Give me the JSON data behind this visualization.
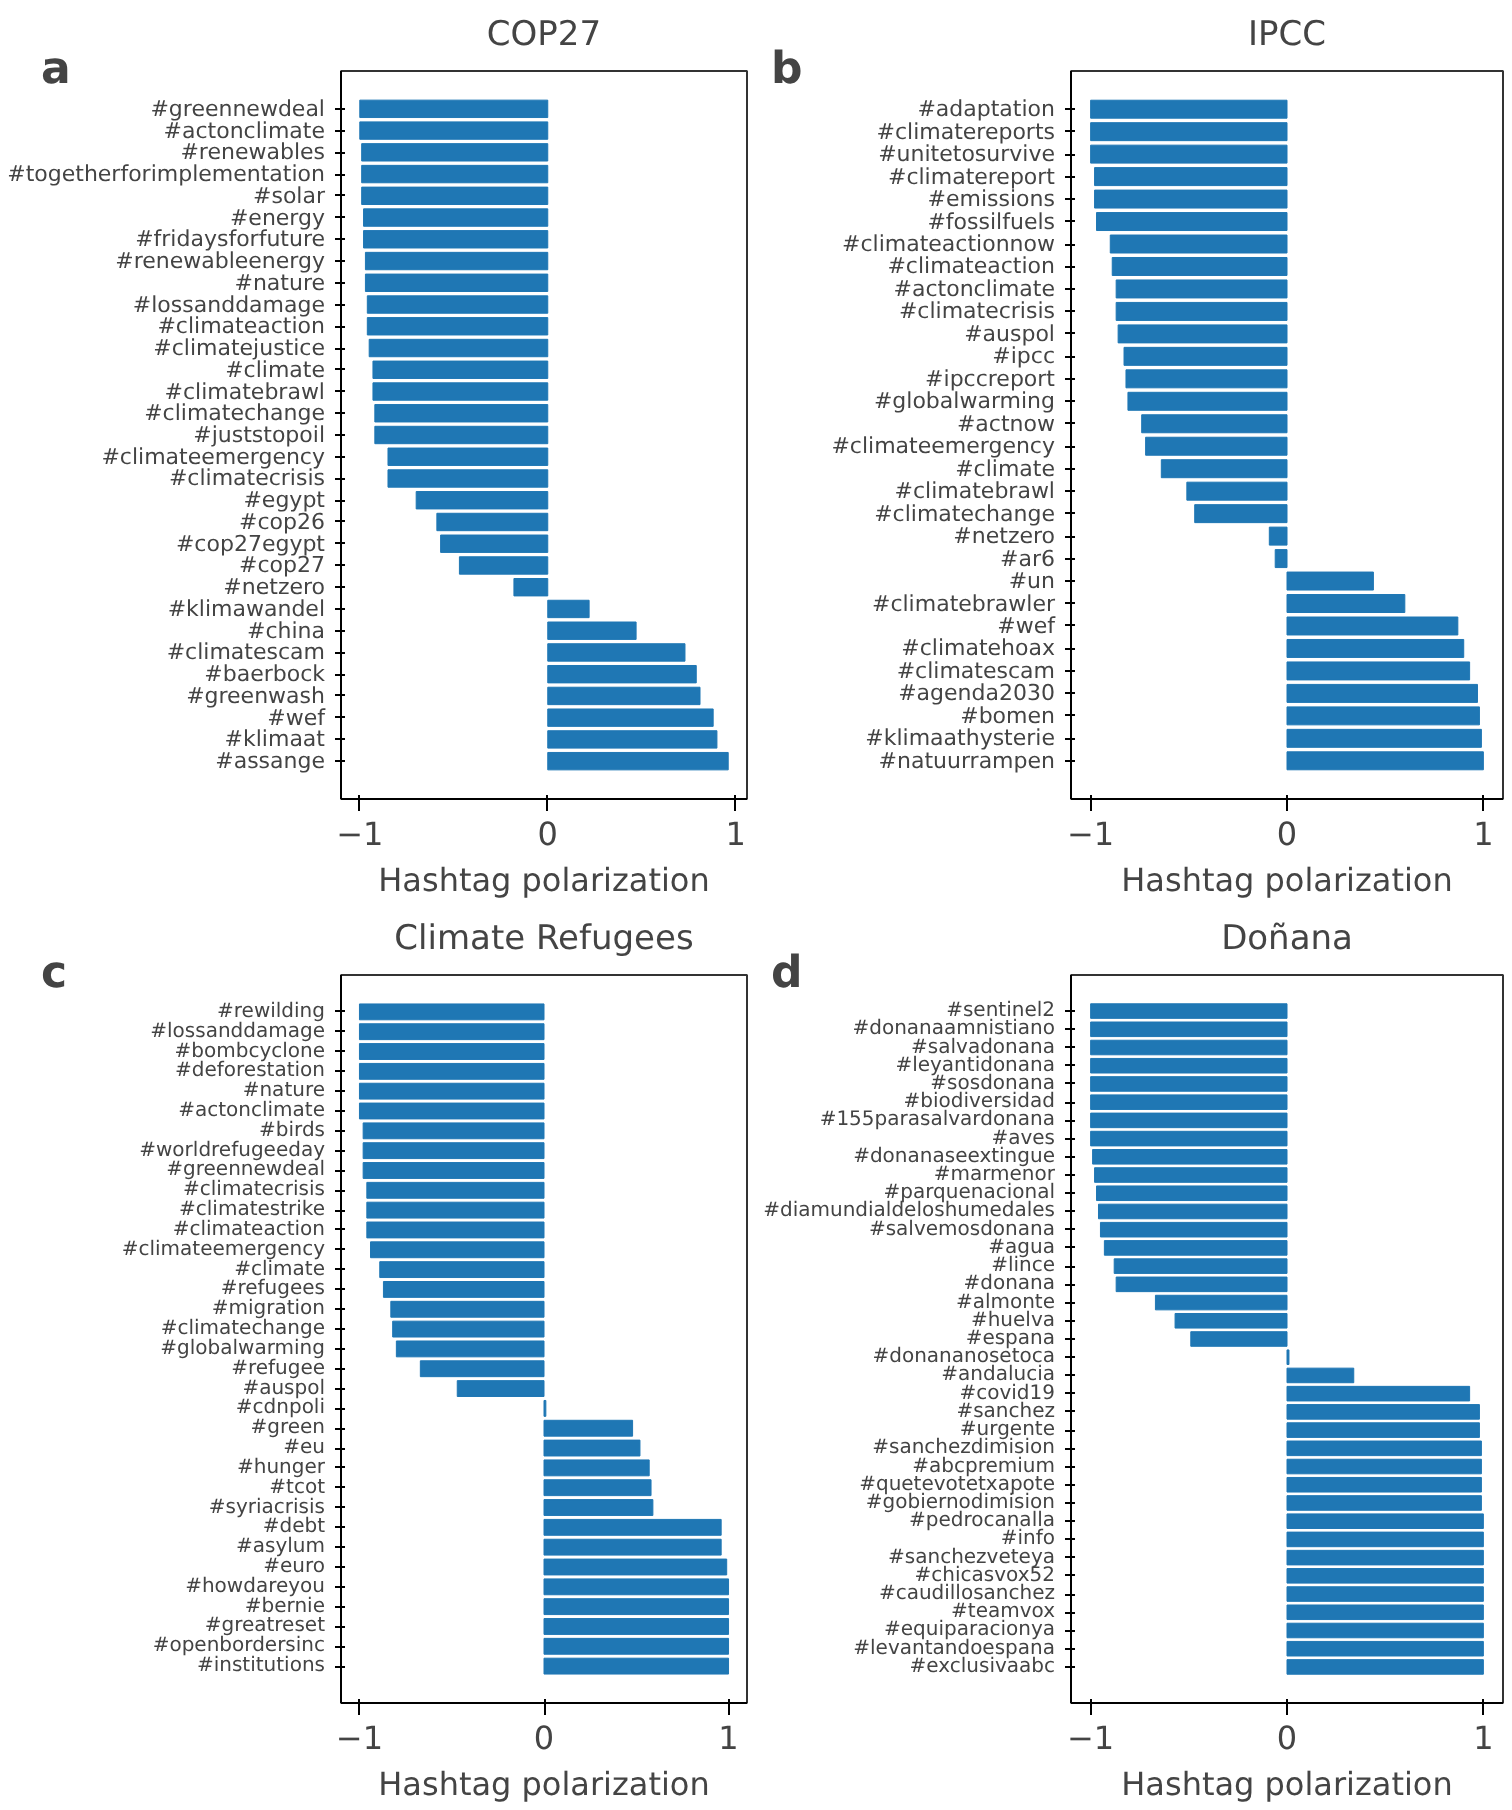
{
  "chart_data": [
    {
      "type": "bar",
      "orientation": "horizontal",
      "title": "COP27",
      "xlabel": "Hashtag polarization",
      "annotations": [
        "a"
      ],
      "color": "#1f77b4",
      "xlim": [
        -1.1,
        1.06
      ],
      "xticks": [
        -1,
        0,
        1
      ],
      "categories": [
        "#greennewdeal",
        "#actonclimate",
        "#renewables",
        "#togetherforimplementation",
        "#solar",
        "#energy",
        "#fridaysforfuture",
        "#renewableenergy",
        "#nature",
        "#lossanddamage",
        "#climateaction",
        "#climatejustice",
        "#climate",
        "#climatebrawl",
        "#climatechange",
        "#juststopoil",
        "#climateemergency",
        "#climatecrisis",
        "#egypt",
        "#cop26",
        "#cop27egypt",
        "#cop27",
        "#netzero",
        "#klimawandel",
        "#china",
        "#climatescam",
        "#baerbock",
        "#greenwash",
        "#wef",
        "#klimaat",
        "#assange"
      ],
      "values": [
        -1.0,
        -1.0,
        -0.99,
        -0.99,
        -0.99,
        -0.98,
        -0.98,
        -0.97,
        -0.97,
        -0.96,
        -0.96,
        -0.95,
        -0.93,
        -0.93,
        -0.92,
        -0.92,
        -0.85,
        -0.85,
        -0.7,
        -0.59,
        -0.57,
        -0.47,
        -0.18,
        0.22,
        0.47,
        0.73,
        0.79,
        0.81,
        0.88,
        0.9,
        0.96
      ]
    },
    {
      "type": "bar",
      "orientation": "horizontal",
      "title": "IPCC",
      "xlabel": "Hashtag polarization",
      "annotations": [
        "b"
      ],
      "color": "#1f77b4",
      "xlim": [
        -1.1,
        1.1
      ],
      "xticks": [
        -1,
        0,
        1
      ],
      "categories": [
        "#adaptation",
        "#climatereports",
        "#unitetosurvive",
        "#climatereport",
        "#emissions",
        "#fossilfuels",
        "#climateactionnow",
        "#climateaction",
        "#actonclimate",
        "#climatecrisis",
        "#auspol",
        "#ipcc",
        "#ipccreport",
        "#globalwarming",
        "#actnow",
        "#climateemergency",
        "#climate",
        "#climatebrawl",
        "#climatechange",
        "#netzero",
        "#ar6",
        "#un",
        "#climatebrawler",
        "#wef",
        "#climatehoax",
        "#climatescam",
        "#agenda2030",
        "#bomen",
        "#klimaathysterie",
        "#natuurrampen"
      ],
      "values": [
        -1.0,
        -1.0,
        -1.0,
        -0.98,
        -0.98,
        -0.97,
        -0.9,
        -0.89,
        -0.87,
        -0.87,
        -0.86,
        -0.83,
        -0.82,
        -0.81,
        -0.74,
        -0.72,
        -0.64,
        -0.51,
        -0.47,
        -0.09,
        -0.06,
        0.44,
        0.6,
        0.87,
        0.9,
        0.93,
        0.97,
        0.98,
        0.99,
        1.0
      ]
    },
    {
      "type": "bar",
      "orientation": "horizontal",
      "title": "Climate Refugees",
      "xlabel": "Hashtag polarization",
      "annotations": [
        "c"
      ],
      "color": "#1f77b4",
      "xlim": [
        -1.1,
        1.1
      ],
      "xticks": [
        -1,
        0,
        1
      ],
      "categories": [
        "#rewilding",
        "#lossanddamage",
        "#bombcyclone",
        "#deforestation",
        "#nature",
        "#actonclimate",
        "#birds",
        "#worldrefugeeday",
        "#greennewdeal",
        "#climatecrisis",
        "#climatestrike",
        "#climateaction",
        "#climateemergency",
        "#climate",
        "#refugees",
        "#migration",
        "#climatechange",
        "#globalwarming",
        "#refugee",
        "#auspol",
        "#cdnpoli",
        "#green",
        "#eu",
        "#hunger",
        "#tcot",
        "#syriacrisis",
        "#debt",
        "#asylum",
        "#euro",
        "#howdareyou",
        "#bernie",
        "#greatreset",
        "#openbordersinc",
        "#institutions"
      ],
      "values": [
        -1.0,
        -1.0,
        -1.0,
        -1.0,
        -1.0,
        -1.0,
        -0.98,
        -0.98,
        -0.98,
        -0.96,
        -0.96,
        -0.96,
        -0.94,
        -0.89,
        -0.87,
        -0.83,
        -0.82,
        -0.8,
        -0.67,
        -0.47,
        0.01,
        0.48,
        0.52,
        0.57,
        0.58,
        0.59,
        0.96,
        0.96,
        0.99,
        1.0,
        1.0,
        1.0,
        1.0,
        1.0
      ]
    },
    {
      "type": "bar",
      "orientation": "horizontal",
      "title": "Doñana",
      "xlabel": "Hashtag polarization",
      "annotations": [
        "d"
      ],
      "color": "#1f77b4",
      "xlim": [
        -1.1,
        1.1
      ],
      "xticks": [
        -1,
        0,
        1
      ],
      "categories": [
        "#sentinel2",
        "#donanaamnistiano",
        "#salvadonana",
        "#leyantidonana",
        "#sosdonana",
        "#biodiversidad",
        "#155parasalvardonana",
        "#aves",
        "#donanaseextingue",
        "#marmenor",
        "#parquenacional",
        "#diamundialdeloshumedales",
        "#salvemosdonana",
        "#agua",
        "#lince",
        "#donana",
        "#almonte",
        "#huelva",
        "#espana",
        "#donananosetoca",
        "#andalucia",
        "#covid19",
        "#sanchez",
        "#urgente",
        "#sanchezdimision",
        "#abcpremium",
        "#quetevotetxapote",
        "#gobiernodimision",
        "#pedrocanalla",
        "#info",
        "#sanchezveteya",
        "#chicasvox52",
        "#caudillosanchez",
        "#teamvox",
        "#equiparacionya",
        "#levantandoespana",
        "#exclusivaabc"
      ],
      "values": [
        -1.0,
        -1.0,
        -1.0,
        -1.0,
        -1.0,
        -1.0,
        -1.0,
        -1.0,
        -0.99,
        -0.98,
        -0.97,
        -0.96,
        -0.95,
        -0.93,
        -0.88,
        -0.87,
        -0.67,
        -0.57,
        -0.49,
        0.01,
        0.34,
        0.93,
        0.98,
        0.98,
        0.99,
        0.99,
        0.99,
        0.99,
        1.0,
        1.0,
        1.0,
        1.0,
        1.0,
        1.0,
        1.0,
        1.0,
        1.0
      ]
    }
  ]
}
